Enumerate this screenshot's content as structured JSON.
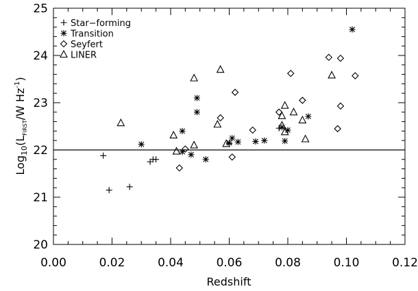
{
  "chart_data": {
    "type": "scatter",
    "xlabel": "Redshift",
    "ylabel": {
      "prefix": "Log",
      "sub10": "10",
      "open": "(L",
      "sub": "FIRST",
      "mid": "/W Hz",
      "sup": "-1",
      "close": ")"
    },
    "xlim": [
      0.0,
      0.12
    ],
    "ylim": [
      20,
      25
    ],
    "xticks": [
      "0.00",
      "0.02",
      "0.04",
      "0.06",
      "0.08",
      "0.10",
      "0.12"
    ],
    "yticks": [
      "20",
      "21",
      "22",
      "23",
      "24",
      "25"
    ],
    "xtick_values": [
      0.0,
      0.02,
      0.04,
      0.06,
      0.08,
      0.1,
      0.12
    ],
    "ytick_values": [
      20,
      21,
      22,
      23,
      24,
      25
    ],
    "reference_line_y": 22.0,
    "legend_position": "top-left",
    "series": [
      {
        "name": "Star−forming",
        "marker": "plus",
        "points": [
          [
            0.017,
            21.88
          ],
          [
            0.019,
            21.15
          ],
          [
            0.026,
            21.22
          ],
          [
            0.033,
            21.75
          ],
          [
            0.034,
            21.8
          ],
          [
            0.035,
            21.8
          ],
          [
            0.06,
            22.13
          ],
          [
            0.077,
            22.46
          ]
        ]
      },
      {
        "name": "Transition",
        "marker": "asterisk",
        "points": [
          [
            0.03,
            22.12
          ],
          [
            0.044,
            21.96
          ],
          [
            0.044,
            22.4
          ],
          [
            0.047,
            21.9
          ],
          [
            0.049,
            23.1
          ],
          [
            0.049,
            22.8
          ],
          [
            0.052,
            21.8
          ],
          [
            0.06,
            22.15
          ],
          [
            0.061,
            22.25
          ],
          [
            0.063,
            22.17
          ],
          [
            0.069,
            22.18
          ],
          [
            0.072,
            22.2
          ],
          [
            0.078,
            22.48
          ],
          [
            0.079,
            22.19
          ],
          [
            0.08,
            22.42
          ],
          [
            0.087,
            22.71
          ],
          [
            0.102,
            24.55
          ]
        ]
      },
      {
        "name": "Seyfert",
        "marker": "diamond",
        "points": [
          [
            0.043,
            21.62
          ],
          [
            0.045,
            22.02
          ],
          [
            0.057,
            22.68
          ],
          [
            0.061,
            21.85
          ],
          [
            0.062,
            23.22
          ],
          [
            0.068,
            22.42
          ],
          [
            0.077,
            22.8
          ],
          [
            0.081,
            23.62
          ],
          [
            0.085,
            23.05
          ],
          [
            0.094,
            23.96
          ],
          [
            0.097,
            22.45
          ],
          [
            0.098,
            22.93
          ],
          [
            0.098,
            23.94
          ],
          [
            0.103,
            23.57
          ]
        ]
      },
      {
        "name": "LINER",
        "marker": "triangle",
        "points": [
          [
            0.023,
            22.57
          ],
          [
            0.041,
            22.31
          ],
          [
            0.042,
            21.97
          ],
          [
            0.048,
            23.52
          ],
          [
            0.048,
            22.1
          ],
          [
            0.056,
            22.54
          ],
          [
            0.057,
            23.7
          ],
          [
            0.059,
            22.13
          ],
          [
            0.078,
            22.52
          ],
          [
            0.078,
            22.72
          ],
          [
            0.079,
            22.38
          ],
          [
            0.079,
            22.94
          ],
          [
            0.082,
            22.8
          ],
          [
            0.085,
            22.63
          ],
          [
            0.086,
            22.23
          ],
          [
            0.095,
            23.58
          ]
        ]
      }
    ]
  }
}
